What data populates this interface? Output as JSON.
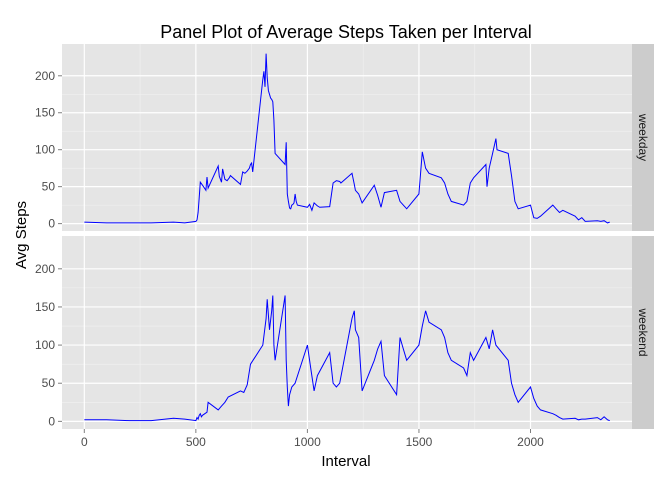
{
  "chart_data": {
    "type": "line",
    "title": "Panel Plot of Average Steps Taken per Interval",
    "xlabel": "Interval",
    "ylabel": "Avg Steps",
    "xlim": [
      -100,
      2455
    ],
    "ylim": [
      -10,
      243
    ],
    "x_ticks": [
      0,
      500,
      1000,
      1500,
      2000
    ],
    "y_ticks": [
      0,
      50,
      100,
      150,
      200
    ],
    "line_color": "#0000ff",
    "panel_background": "#e5e5e5",
    "strip_background": "#cccccc",
    "grid": true,
    "panels": [
      {
        "label": "weekday",
        "x": [
          0,
          100,
          200,
          300,
          400,
          450,
          500,
          505,
          510,
          515,
          520,
          530,
          545,
          550,
          555,
          600,
          605,
          615,
          620,
          630,
          640,
          650,
          655,
          700,
          710,
          720,
          730,
          740,
          745,
          750,
          755,
          800,
          805,
          810,
          815,
          820,
          825,
          830,
          835,
          840,
          845,
          850,
          855,
          900,
          905,
          910,
          915,
          920,
          925,
          930,
          935,
          940,
          945,
          950,
          955,
          1000,
          1010,
          1020,
          1030,
          1045,
          1055,
          1100,
          1115,
          1130,
          1145,
          1150,
          1200,
          1210,
          1215,
          1230,
          1245,
          1300,
          1315,
          1330,
          1345,
          1400,
          1415,
          1430,
          1445,
          1500,
          1515,
          1530,
          1545,
          1600,
          1615,
          1630,
          1645,
          1700,
          1715,
          1730,
          1745,
          1800,
          1805,
          1815,
          1830,
          1845,
          1850,
          1900,
          1915,
          1930,
          1945,
          2000,
          2015,
          2030,
          2045,
          2100,
          2115,
          2130,
          2145,
          2200,
          2215,
          2230,
          2245,
          2300,
          2315,
          2330,
          2345,
          2355
        ],
        "y": [
          2,
          1,
          1,
          1,
          2,
          1,
          3,
          5,
          15,
          35,
          56,
          52,
          45,
          63,
          48,
          78,
          64,
          56,
          74,
          60,
          58,
          62,
          65,
          53,
          70,
          68,
          71,
          75,
          80,
          82,
          70,
          195,
          206,
          185,
          230,
          198,
          180,
          175,
          170,
          168,
          165,
          140,
          95,
          80,
          110,
          40,
          30,
          21,
          20,
          25,
          26,
          28,
          40,
          30,
          25,
          22,
          26,
          18,
          28,
          24,
          22,
          23,
          55,
          58,
          57,
          55,
          68,
          53,
          45,
          40,
          28,
          52,
          38,
          22,
          42,
          45,
          30,
          25,
          20,
          40,
          97,
          75,
          68,
          62,
          55,
          40,
          30,
          25,
          30,
          55,
          62,
          80,
          50,
          75,
          95,
          115,
          100,
          95,
          65,
          30,
          20,
          25,
          8,
          7,
          10,
          25,
          20,
          15,
          18,
          10,
          5,
          8,
          3,
          4,
          3,
          4,
          1,
          2
        ],
        "interpolation": "linear"
      },
      {
        "label": "weekend",
        "x": [
          0,
          100,
          200,
          300,
          400,
          450,
          500,
          505,
          510,
          515,
          520,
          525,
          530,
          550,
          555,
          600,
          615,
          630,
          645,
          700,
          715,
          730,
          745,
          800,
          815,
          820,
          830,
          840,
          845,
          850,
          855,
          900,
          905,
          910,
          915,
          920,
          930,
          945,
          1000,
          1015,
          1030,
          1045,
          1100,
          1115,
          1130,
          1145,
          1200,
          1210,
          1215,
          1230,
          1245,
          1300,
          1315,
          1330,
          1345,
          1400,
          1415,
          1430,
          1445,
          1500,
          1515,
          1530,
          1545,
          1600,
          1615,
          1630,
          1645,
          1700,
          1715,
          1730,
          1745,
          1800,
          1815,
          1830,
          1845,
          1900,
          1915,
          1930,
          1945,
          2000,
          2015,
          2030,
          2045,
          2100,
          2115,
          2130,
          2145,
          2200,
          2215,
          2230,
          2245,
          2300,
          2315,
          2330,
          2345,
          2355
        ],
        "y": [
          2,
          2,
          1,
          1,
          4,
          3,
          1,
          5,
          3,
          8,
          10,
          6,
          8,
          12,
          25,
          15,
          20,
          25,
          32,
          40,
          38,
          48,
          75,
          100,
          135,
          160,
          120,
          145,
          165,
          100,
          80,
          165,
          80,
          45,
          20,
          35,
          45,
          50,
          100,
          70,
          40,
          60,
          90,
          50,
          45,
          50,
          135,
          145,
          120,
          110,
          40,
          80,
          95,
          105,
          60,
          35,
          110,
          95,
          80,
          100,
          125,
          145,
          130,
          120,
          110,
          90,
          80,
          70,
          60,
          90,
          80,
          110,
          95,
          120,
          100,
          80,
          50,
          35,
          25,
          45,
          30,
          20,
          15,
          10,
          8,
          5,
          3,
          4,
          2,
          3,
          3,
          5,
          2,
          6,
          2,
          1
        ],
        "interpolation": "linear"
      }
    ]
  }
}
